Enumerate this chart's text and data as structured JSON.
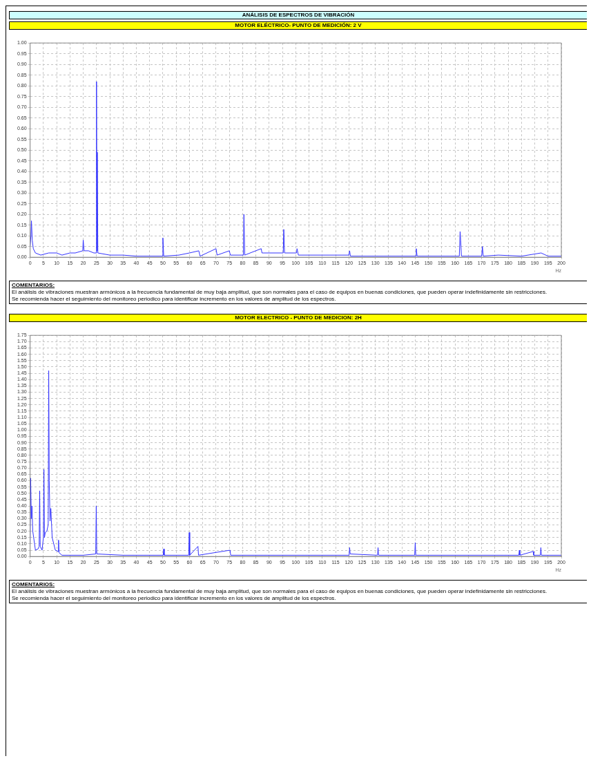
{
  "chart_data": [
    {
      "type": "line",
      "title": "ANÁLISIS DE ESPECTROS DE VIBRACIÓN",
      "subtitle": "MOTOR ELÉCTRICO- PUNTO DE MEDICIÓN: 2 V",
      "xlabel": "Hz",
      "grid": true,
      "legend": false,
      "marker": "none",
      "xlim": [
        0,
        200
      ],
      "xticks": [
        0,
        5,
        10,
        15,
        20,
        25,
        30,
        35,
        40,
        45,
        50,
        55,
        60,
        65,
        70,
        75,
        80,
        85,
        90,
        95,
        100,
        105,
        110,
        115,
        120,
        125,
        130,
        135,
        140,
        145,
        150,
        155,
        160,
        165,
        170,
        175,
        180,
        185,
        190,
        195,
        200
      ],
      "ylim": [
        0,
        1
      ],
      "yticks": [
        {
          "value": 0,
          "label": "0.00"
        },
        {
          "value": 0.05,
          "label": "0.05"
        },
        {
          "value": 0.1,
          "label": "0.10"
        },
        {
          "value": 0.15,
          "label": "0.15"
        },
        {
          "value": 0.2,
          "label": "0.20"
        },
        {
          "value": 0.25,
          "label": "0.25"
        },
        {
          "value": 0.3,
          "label": "0.30"
        },
        {
          "value": 0.35,
          "label": "0.35"
        },
        {
          "value": 0.4,
          "label": "0.40"
        },
        {
          "value": 0.45,
          "label": "0.45"
        },
        {
          "value": 0.5,
          "label": "0.50"
        },
        {
          "value": 0.55,
          "label": "0.55"
        },
        {
          "value": 0.6,
          "label": "0.60"
        },
        {
          "value": 0.65,
          "label": "0.65"
        },
        {
          "value": 0.7,
          "label": "0.70"
        },
        {
          "value": 0.75,
          "label": "0.75"
        },
        {
          "value": 0.8,
          "label": "0.80"
        },
        {
          "value": 0.85,
          "label": "0.85"
        },
        {
          "value": 0.9,
          "label": "0.90"
        },
        {
          "value": 0.95,
          "label": "0.95"
        },
        {
          "value": 1,
          "label": "1.00"
        }
      ],
      "series": [
        {
          "color": "#3333ff",
          "x": [
            0,
            0.3,
            0.5,
            0.8,
            1.2,
            2,
            4,
            7,
            10,
            12,
            15,
            17,
            19.8,
            20,
            20.3,
            22,
            24,
            24.8,
            25,
            25.15,
            25.3,
            25.5,
            30,
            35,
            40,
            49.8,
            50,
            50.3,
            56,
            60,
            63.5,
            64,
            70,
            70.4,
            75,
            75.4,
            80.3,
            80.5,
            80.8,
            87,
            87.3,
            95.3,
            95.5,
            95.8,
            100.3,
            100.5,
            101,
            110,
            120,
            120.3,
            120.6,
            130,
            140,
            145.2,
            145.4,
            145.7,
            155,
            161.6,
            161.9,
            162.1,
            162.4,
            170,
            170.3,
            170.6,
            176.3,
            185,
            192.4,
            195,
            200
          ],
          "values": [
            0.05,
            0.1,
            0.17,
            0.08,
            0.04,
            0.02,
            0.01,
            0.02,
            0.02,
            0.01,
            0.02,
            0.02,
            0.03,
            0.08,
            0.03,
            0.03,
            0.02,
            0.02,
            0.82,
            0.03,
            0.49,
            0.02,
            0.01,
            0.01,
            0.005,
            0.005,
            0.09,
            0.005,
            0.01,
            0.02,
            0.03,
            0.005,
            0.04,
            0.01,
            0.03,
            0.01,
            0.01,
            0.2,
            0.01,
            0.04,
            0.02,
            0.02,
            0.13,
            0.02,
            0.02,
            0.04,
            0.01,
            0.01,
            0.01,
            0.03,
            0.005,
            0.005,
            0.005,
            0.005,
            0.04,
            0.005,
            0.005,
            0.005,
            0.12,
            0.08,
            0.005,
            0.005,
            0.05,
            0.005,
            0.01,
            0.005,
            0.02,
            0.005,
            0.005
          ]
        }
      ],
      "annotations": [
        "COMENTARIOS:",
        "El análisis de vibraciones muestran armónicos a la frecuencia fundamental de muy baja amplitud, que son normales para el caso de equipos en buenas condiciones, que pueden operar indefinidamente sin restricciones.",
        "Se recomienda hacer el seguimiento del monitoreo periodico para identificar incremento en los valores de amplitud de los espectros."
      ]
    },
    {
      "type": "line",
      "subtitle": "MOTOR ELECTRICO - PUNTO DE MEDICION: 2H",
      "xlabel": "Hz",
      "grid": true,
      "legend": false,
      "marker": "none",
      "xlim": [
        0,
        200
      ],
      "xticks": [
        0,
        5,
        10,
        15,
        20,
        25,
        30,
        35,
        40,
        45,
        50,
        55,
        60,
        65,
        70,
        75,
        80,
        85,
        90,
        95,
        100,
        105,
        110,
        115,
        120,
        125,
        130,
        135,
        140,
        145,
        150,
        155,
        160,
        165,
        170,
        175,
        180,
        185,
        190,
        195,
        200
      ],
      "ylim": [
        0,
        1.75
      ],
      "yticks": [
        {
          "value": 0,
          "label": "0.00"
        },
        {
          "value": 0.05,
          "label": "0.05"
        },
        {
          "value": 0.1,
          "label": "0.10"
        },
        {
          "value": 0.15,
          "label": "0.15"
        },
        {
          "value": 0.2,
          "label": "0.20"
        },
        {
          "value": 0.25,
          "label": "0.25"
        },
        {
          "value": 0.3,
          "label": "0.30"
        },
        {
          "value": 0.35,
          "label": "0.35"
        },
        {
          "value": 0.4,
          "label": "0.40"
        },
        {
          "value": 0.45,
          "label": "0.45"
        },
        {
          "value": 0.5,
          "label": "0.50"
        },
        {
          "value": 0.55,
          "label": "0.55"
        },
        {
          "value": 0.6,
          "label": "0.60"
        },
        {
          "value": 0.65,
          "label": "0.65"
        },
        {
          "value": 0.7,
          "label": "0.70"
        },
        {
          "value": 0.75,
          "label": "0.75"
        },
        {
          "value": 0.8,
          "label": "0.80"
        },
        {
          "value": 0.85,
          "label": "0.85"
        },
        {
          "value": 0.9,
          "label": "0.90"
        },
        {
          "value": 0.95,
          "label": "0.95"
        },
        {
          "value": 1,
          "label": "1.00"
        },
        {
          "value": 1.05,
          "label": "1.05"
        },
        {
          "value": 1.1,
          "label": "1.10"
        },
        {
          "value": 1.15,
          "label": "1.15"
        },
        {
          "value": 1.2,
          "label": "1.20"
        },
        {
          "value": 1.25,
          "label": "1.25"
        },
        {
          "value": 1.3,
          "label": "1.30"
        },
        {
          "value": 1.35,
          "label": "1.35"
        },
        {
          "value": 1.4,
          "label": "1.40"
        },
        {
          "value": 1.45,
          "label": "1.45"
        },
        {
          "value": 1.5,
          "label": "1.50"
        },
        {
          "value": 1.55,
          "label": "1.55"
        },
        {
          "value": 1.6,
          "label": "1.60"
        },
        {
          "value": 1.65,
          "label": "1.65"
        },
        {
          "value": 1.7,
          "label": "1.70"
        },
        {
          "value": 1.75,
          "label": "1.75"
        }
      ],
      "series": [
        {
          "color": "#3333ff",
          "x": [
            0,
            0.2,
            0.45,
            0.7,
            1,
            2,
            3,
            3.4,
            3.6,
            3.8,
            4.5,
            5,
            5.2,
            5.4,
            5.7,
            6.3,
            6.8,
            7,
            7.2,
            7.5,
            7.8,
            8.3,
            9.5,
            10.5,
            10.7,
            10.9,
            12,
            20,
            24.7,
            24.9,
            25.1,
            35,
            50.1,
            50.3,
            50.5,
            59.7,
            59.9,
            60.1,
            63.2,
            63.4,
            75.3,
            75.5,
            100,
            120.1,
            120.3,
            120.5,
            130.8,
            131,
            131.2,
            144.8,
            145,
            145.2,
            170,
            184,
            184.2,
            184.4,
            189.4,
            189.6,
            192.1,
            192.3,
            192.5,
            200
          ],
          "values": [
            0.1,
            0.62,
            0.3,
            0.4,
            0.2,
            0.05,
            0.06,
            0.08,
            0.52,
            0.08,
            0.05,
            0.15,
            0.69,
            0.15,
            0.19,
            0.2,
            0.25,
            1.47,
            0.6,
            0.28,
            0.38,
            0.15,
            0.05,
            0.04,
            0.13,
            0.03,
            0.01,
            0.01,
            0.02,
            0.4,
            0.02,
            0.01,
            0.01,
            0.06,
            0.01,
            0.01,
            0.19,
            0.01,
            0.08,
            0.01,
            0.05,
            0.01,
            0.01,
            0.01,
            0.07,
            0.02,
            0.01,
            0.07,
            0.01,
            0.01,
            0.11,
            0.01,
            0.01,
            0.01,
            0.05,
            0.01,
            0.04,
            0.01,
            0.01,
            0.07,
            0.01,
            0.01
          ]
        }
      ],
      "annotations": [
        "COMENTARIOS:",
        "El análisis de vibraciones muestran armónicos a la frecuencia fundamental de muy baja amplitud, que son normales para el caso de equipos en buenas condiciones, que pueden operar indefinidamente sin restricciones.",
        "Se recomienda hacer el seguimiento del monitoreo periodico para identificar incremento en los valores de amplitud de los espectros."
      ]
    }
  ]
}
